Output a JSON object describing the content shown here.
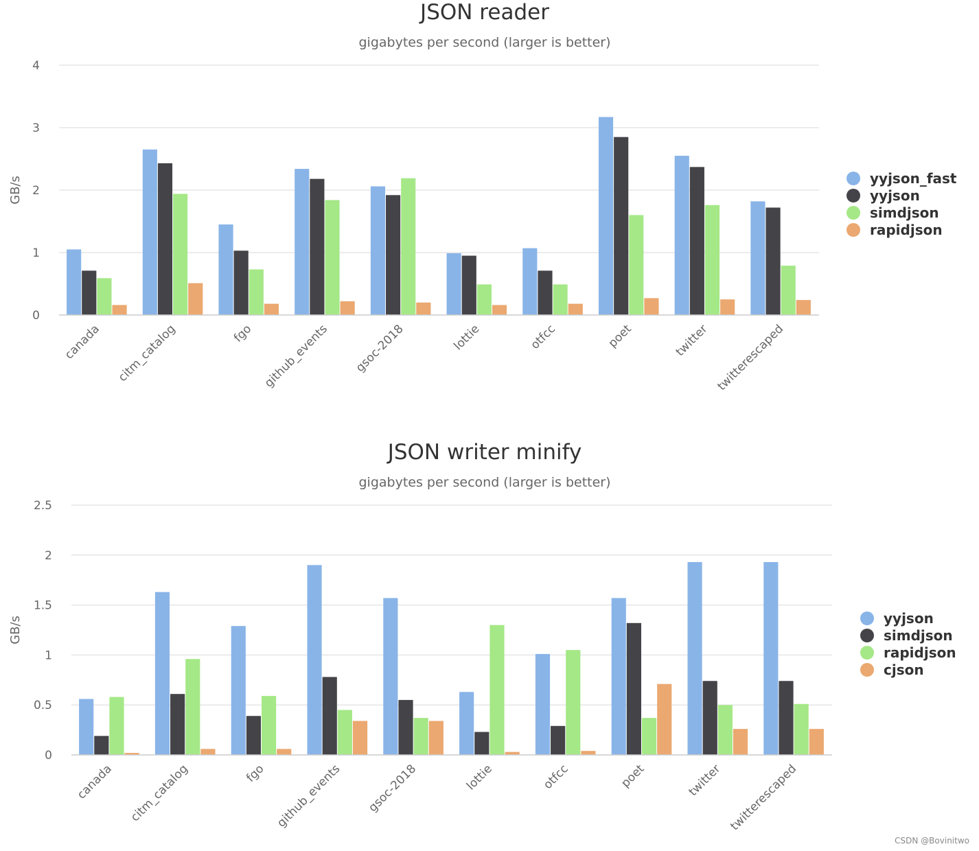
{
  "chart_data": [
    {
      "type": "bar",
      "title": "JSON reader",
      "subtitle": "gigabytes per second (larger is better)",
      "xlabel": "",
      "ylabel": "GB/s",
      "ylim": [
        0,
        4
      ],
      "yticks": [
        "0",
        "1",
        "2",
        "3",
        "4"
      ],
      "ytick_values": [
        0,
        1,
        2,
        3,
        4
      ],
      "legend_position": "right",
      "categories": [
        "canada",
        "citm_catalog",
        "fgo",
        "github_events",
        "gsoc-2018",
        "lottie",
        "otfcc",
        "poet",
        "twitter",
        "twitterescaped"
      ],
      "series": [
        {
          "name": "yyjson_fast",
          "color": "#89b4e8",
          "values": [
            1.05,
            2.65,
            1.45,
            2.34,
            2.06,
            0.99,
            1.07,
            3.17,
            2.55,
            1.82
          ]
        },
        {
          "name": "yyjson",
          "color": "#434348",
          "values": [
            0.71,
            2.43,
            1.03,
            2.18,
            1.92,
            0.95,
            0.71,
            2.85,
            2.37,
            1.72
          ]
        },
        {
          "name": "simdjson",
          "color": "#a5e887",
          "values": [
            0.59,
            1.94,
            0.73,
            1.84,
            2.19,
            0.49,
            0.49,
            1.6,
            1.76,
            0.79
          ]
        },
        {
          "name": "rapidjson",
          "color": "#eba870",
          "values": [
            0.16,
            0.51,
            0.18,
            0.22,
            0.2,
            0.16,
            0.18,
            0.27,
            0.25,
            0.24
          ]
        }
      ]
    },
    {
      "type": "bar",
      "title": "JSON writer minify",
      "subtitle": "gigabytes per second (larger is better)",
      "xlabel": "",
      "ylabel": "GB/s",
      "ylim": [
        0,
        2.5
      ],
      "yticks": [
        "0",
        "0.5",
        "1",
        "1.5",
        "2",
        "2.5"
      ],
      "ytick_values": [
        0,
        0.5,
        1,
        1.5,
        2,
        2.5
      ],
      "legend_position": "right",
      "categories": [
        "canada",
        "citm_catalog",
        "fgo",
        "github_events",
        "gsoc-2018",
        "lottie",
        "otfcc",
        "poet",
        "twitter",
        "twitterescaped"
      ],
      "series": [
        {
          "name": "yyjson",
          "color": "#89b4e8",
          "values": [
            0.56,
            1.63,
            1.29,
            1.9,
            1.57,
            0.63,
            1.01,
            1.57,
            1.93,
            1.93
          ]
        },
        {
          "name": "simdjson",
          "color": "#434348",
          "values": [
            0.19,
            0.61,
            0.39,
            0.78,
            0.55,
            0.23,
            0.29,
            1.32,
            0.74,
            0.74
          ]
        },
        {
          "name": "rapidjson",
          "color": "#a5e887",
          "values": [
            0.58,
            0.96,
            0.59,
            0.45,
            0.37,
            1.3,
            1.05,
            0.37,
            0.5,
            0.51
          ]
        },
        {
          "name": "cjson",
          "color": "#eba870",
          "values": [
            0.02,
            0.06,
            0.06,
            0.34,
            0.34,
            0.03,
            0.04,
            0.71,
            0.26,
            0.26
          ]
        }
      ]
    }
  ],
  "watermark": "CSDN @Bovinitwo"
}
